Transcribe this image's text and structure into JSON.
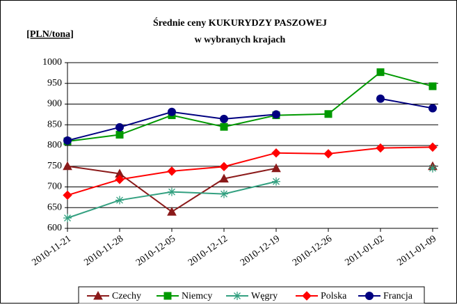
{
  "chart_data": {
    "type": "line",
    "title": "Średnie ceny KUKURYDZY PASZOWEJ",
    "subtitle": "w wybranych krajach",
    "y_label": "[PLN/tona]",
    "categories": [
      "2010-11-21",
      "2010-11-28",
      "2010-12-05",
      "2010-12-12",
      "2010-12-19",
      "2010-12-26",
      "2011-01-02",
      "2011-01-09"
    ],
    "series": [
      {
        "name": "Czechy",
        "color": "#8b1a1a",
        "marker": "triangle",
        "values": [
          750,
          732,
          640,
          720,
          745,
          null,
          null,
          750
        ]
      },
      {
        "name": "Niemcy",
        "color": "#009900",
        "marker": "square",
        "values": [
          810,
          826,
          873,
          845,
          873,
          876,
          977,
          943
        ]
      },
      {
        "name": "Węgry",
        "color": "#33a080",
        "marker": "asterisk",
        "values": [
          625,
          668,
          688,
          683,
          713,
          null,
          null,
          745
        ]
      },
      {
        "name": "Polska",
        "color": "#ff0000",
        "marker": "diamond",
        "values": [
          680,
          718,
          738,
          749,
          782,
          780,
          794,
          796
        ]
      },
      {
        "name": "Francja",
        "color": "#000080",
        "marker": "circle",
        "values": [
          812,
          844,
          881,
          864,
          875,
          null,
          913,
          890
        ]
      }
    ],
    "ylim": [
      600,
      1000
    ],
    "yticks": [
      600,
      650,
      700,
      750,
      800,
      850,
      900,
      950,
      1000
    ],
    "grid": true,
    "legend": "bottom"
  }
}
